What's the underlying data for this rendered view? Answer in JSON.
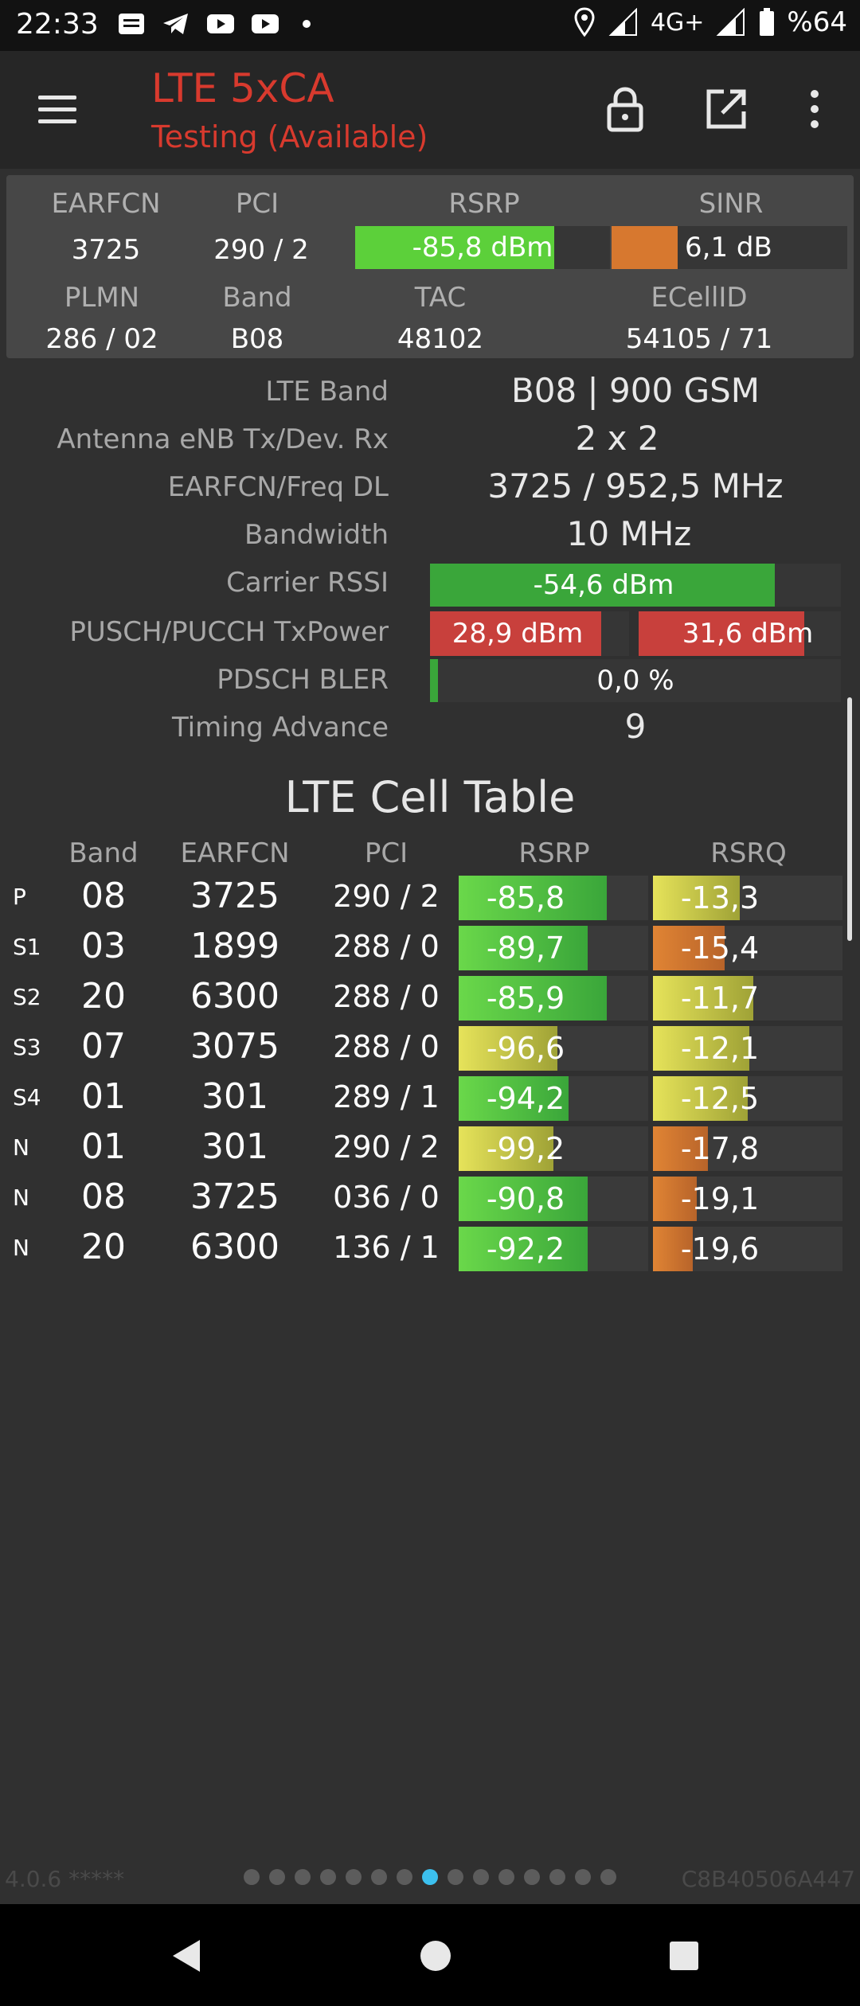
{
  "status_bar": {
    "time": "22:33",
    "network_type": "4G+",
    "battery": "%64",
    "icons": [
      "notes-icon",
      "telegram-icon",
      "youtube-icon",
      "youtube-icon",
      "dot-icon",
      "location-icon",
      "signal-icon",
      "signal-icon",
      "battery-icon"
    ]
  },
  "app_bar": {
    "title": "LTE 5xCA",
    "subtitle": "Testing (Available)",
    "title_color": "#d83a2e",
    "actions": [
      "lock-icon",
      "open-external-icon",
      "more-vert-icon"
    ]
  },
  "summary": {
    "labels": {
      "earfcn": "EARFCN",
      "pci": "PCI",
      "rsrp": "RSRP",
      "sinr": "SINR",
      "plmn": "PLMN",
      "band": "Band",
      "tac": "TAC",
      "ecellid": "ECellID"
    },
    "earfcn": "3725",
    "pci": "290 / 2",
    "rsrp": "-85,8 dBm",
    "rsrp_level": 0.78,
    "sinr": "6,1 dB",
    "sinr_level": 0.28,
    "plmn": "286 / 02",
    "band": "B08",
    "tac": "48102",
    "ecellid": "54105 / 71"
  },
  "details": {
    "lte_band_label": "LTE Band",
    "lte_band": "B08 | 900 GSM",
    "antenna_label": "Antenna eNB Tx/Dev. Rx",
    "antenna": "2 x 2",
    "earfcn_freq_label": "EARFCN/Freq DL",
    "earfcn_freq": "3725 / 952,5 MHz",
    "bandwidth_label": "Bandwidth",
    "bandwidth": "10 MHz",
    "carrier_rssi_label": "Carrier RSSI",
    "carrier_rssi": "-54,6 dBm",
    "carrier_rssi_level": 0.84,
    "txpower_label": "PUSCH/PUCCH TxPower",
    "pusch_txpower": "28,9 dBm",
    "pusch_level": 0.86,
    "pucch_txpower": "31,6 dBm",
    "pucch_level": 0.82,
    "bler_label": "PDSCH BLER",
    "bler": "0,0 %",
    "bler_level": 0.02,
    "timing_advance_label": "Timing Advance",
    "timing_advance": "9"
  },
  "cell_table": {
    "title": "LTE Cell Table",
    "headers": [
      "Band",
      "EARFCN",
      "PCI",
      "RSRP",
      "RSRQ"
    ],
    "rows": [
      {
        "type": "P",
        "band": "08",
        "earfcn": "3725",
        "pci": "290 / 2",
        "rsrp": "-85,8",
        "rsrp_level": 0.78,
        "rsrp_color": "green",
        "rsrq": "-13,3",
        "rsrq_level": 0.46,
        "rsrq_color": "yellow"
      },
      {
        "type": "S1",
        "band": "03",
        "earfcn": "1899",
        "pci": "288 / 0",
        "rsrp": "-89,7",
        "rsrp_level": 0.68,
        "rsrp_color": "green",
        "rsrq": "-15,4",
        "rsrq_level": 0.38,
        "rsrq_color": "orange"
      },
      {
        "type": "S2",
        "band": "20",
        "earfcn": "6300",
        "pci": "288 / 0",
        "rsrp": "-85,9",
        "rsrp_level": 0.78,
        "rsrp_color": "green",
        "rsrq": "-11,7",
        "rsrq_level": 0.53,
        "rsrq_color": "yellow"
      },
      {
        "type": "S3",
        "band": "07",
        "earfcn": "3075",
        "pci": "288 / 0",
        "rsrp": "-96,6",
        "rsrp_level": 0.52,
        "rsrp_color": "yellow",
        "rsrq": "-12,1",
        "rsrq_level": 0.51,
        "rsrq_color": "yellow"
      },
      {
        "type": "S4",
        "band": "01",
        "earfcn": "301",
        "pci": "289 / 1",
        "rsrp": "-94,2",
        "rsrp_level": 0.58,
        "rsrp_color": "green",
        "rsrq": "-12,5",
        "rsrq_level": 0.5,
        "rsrq_color": "yellow"
      },
      {
        "type": "N",
        "band": "01",
        "earfcn": "301",
        "pci": "290 / 2",
        "rsrp": "-99,2",
        "rsrp_level": 0.5,
        "rsrp_color": "yellow",
        "rsrq": "-17,8",
        "rsrq_level": 0.29,
        "rsrq_color": "orange"
      },
      {
        "type": "N",
        "band": "08",
        "earfcn": "3725",
        "pci": "036 / 0",
        "rsrp": "-90,8",
        "rsrp_level": 0.68,
        "rsrp_color": "green",
        "rsrq": "-19,1",
        "rsrq_level": 0.23,
        "rsrq_color": "orange"
      },
      {
        "type": "N",
        "band": "20",
        "earfcn": "6300",
        "pci": "136 / 1",
        "rsrp": "-92,2",
        "rsrp_level": 0.68,
        "rsrp_color": "green",
        "rsrq": "-19,6",
        "rsrq_level": 0.21,
        "rsrq_color": "orange"
      }
    ]
  },
  "footer": {
    "version": "4.0.6 *****",
    "device_id": "C8B40506A447",
    "page_count": 15,
    "active_page": 7
  },
  "colors": {
    "green": "#5cd03a",
    "yellow": "#d9d84a",
    "orange": "#d7782f",
    "red": "#c8403c",
    "active_dot": "#3cc0ee"
  }
}
